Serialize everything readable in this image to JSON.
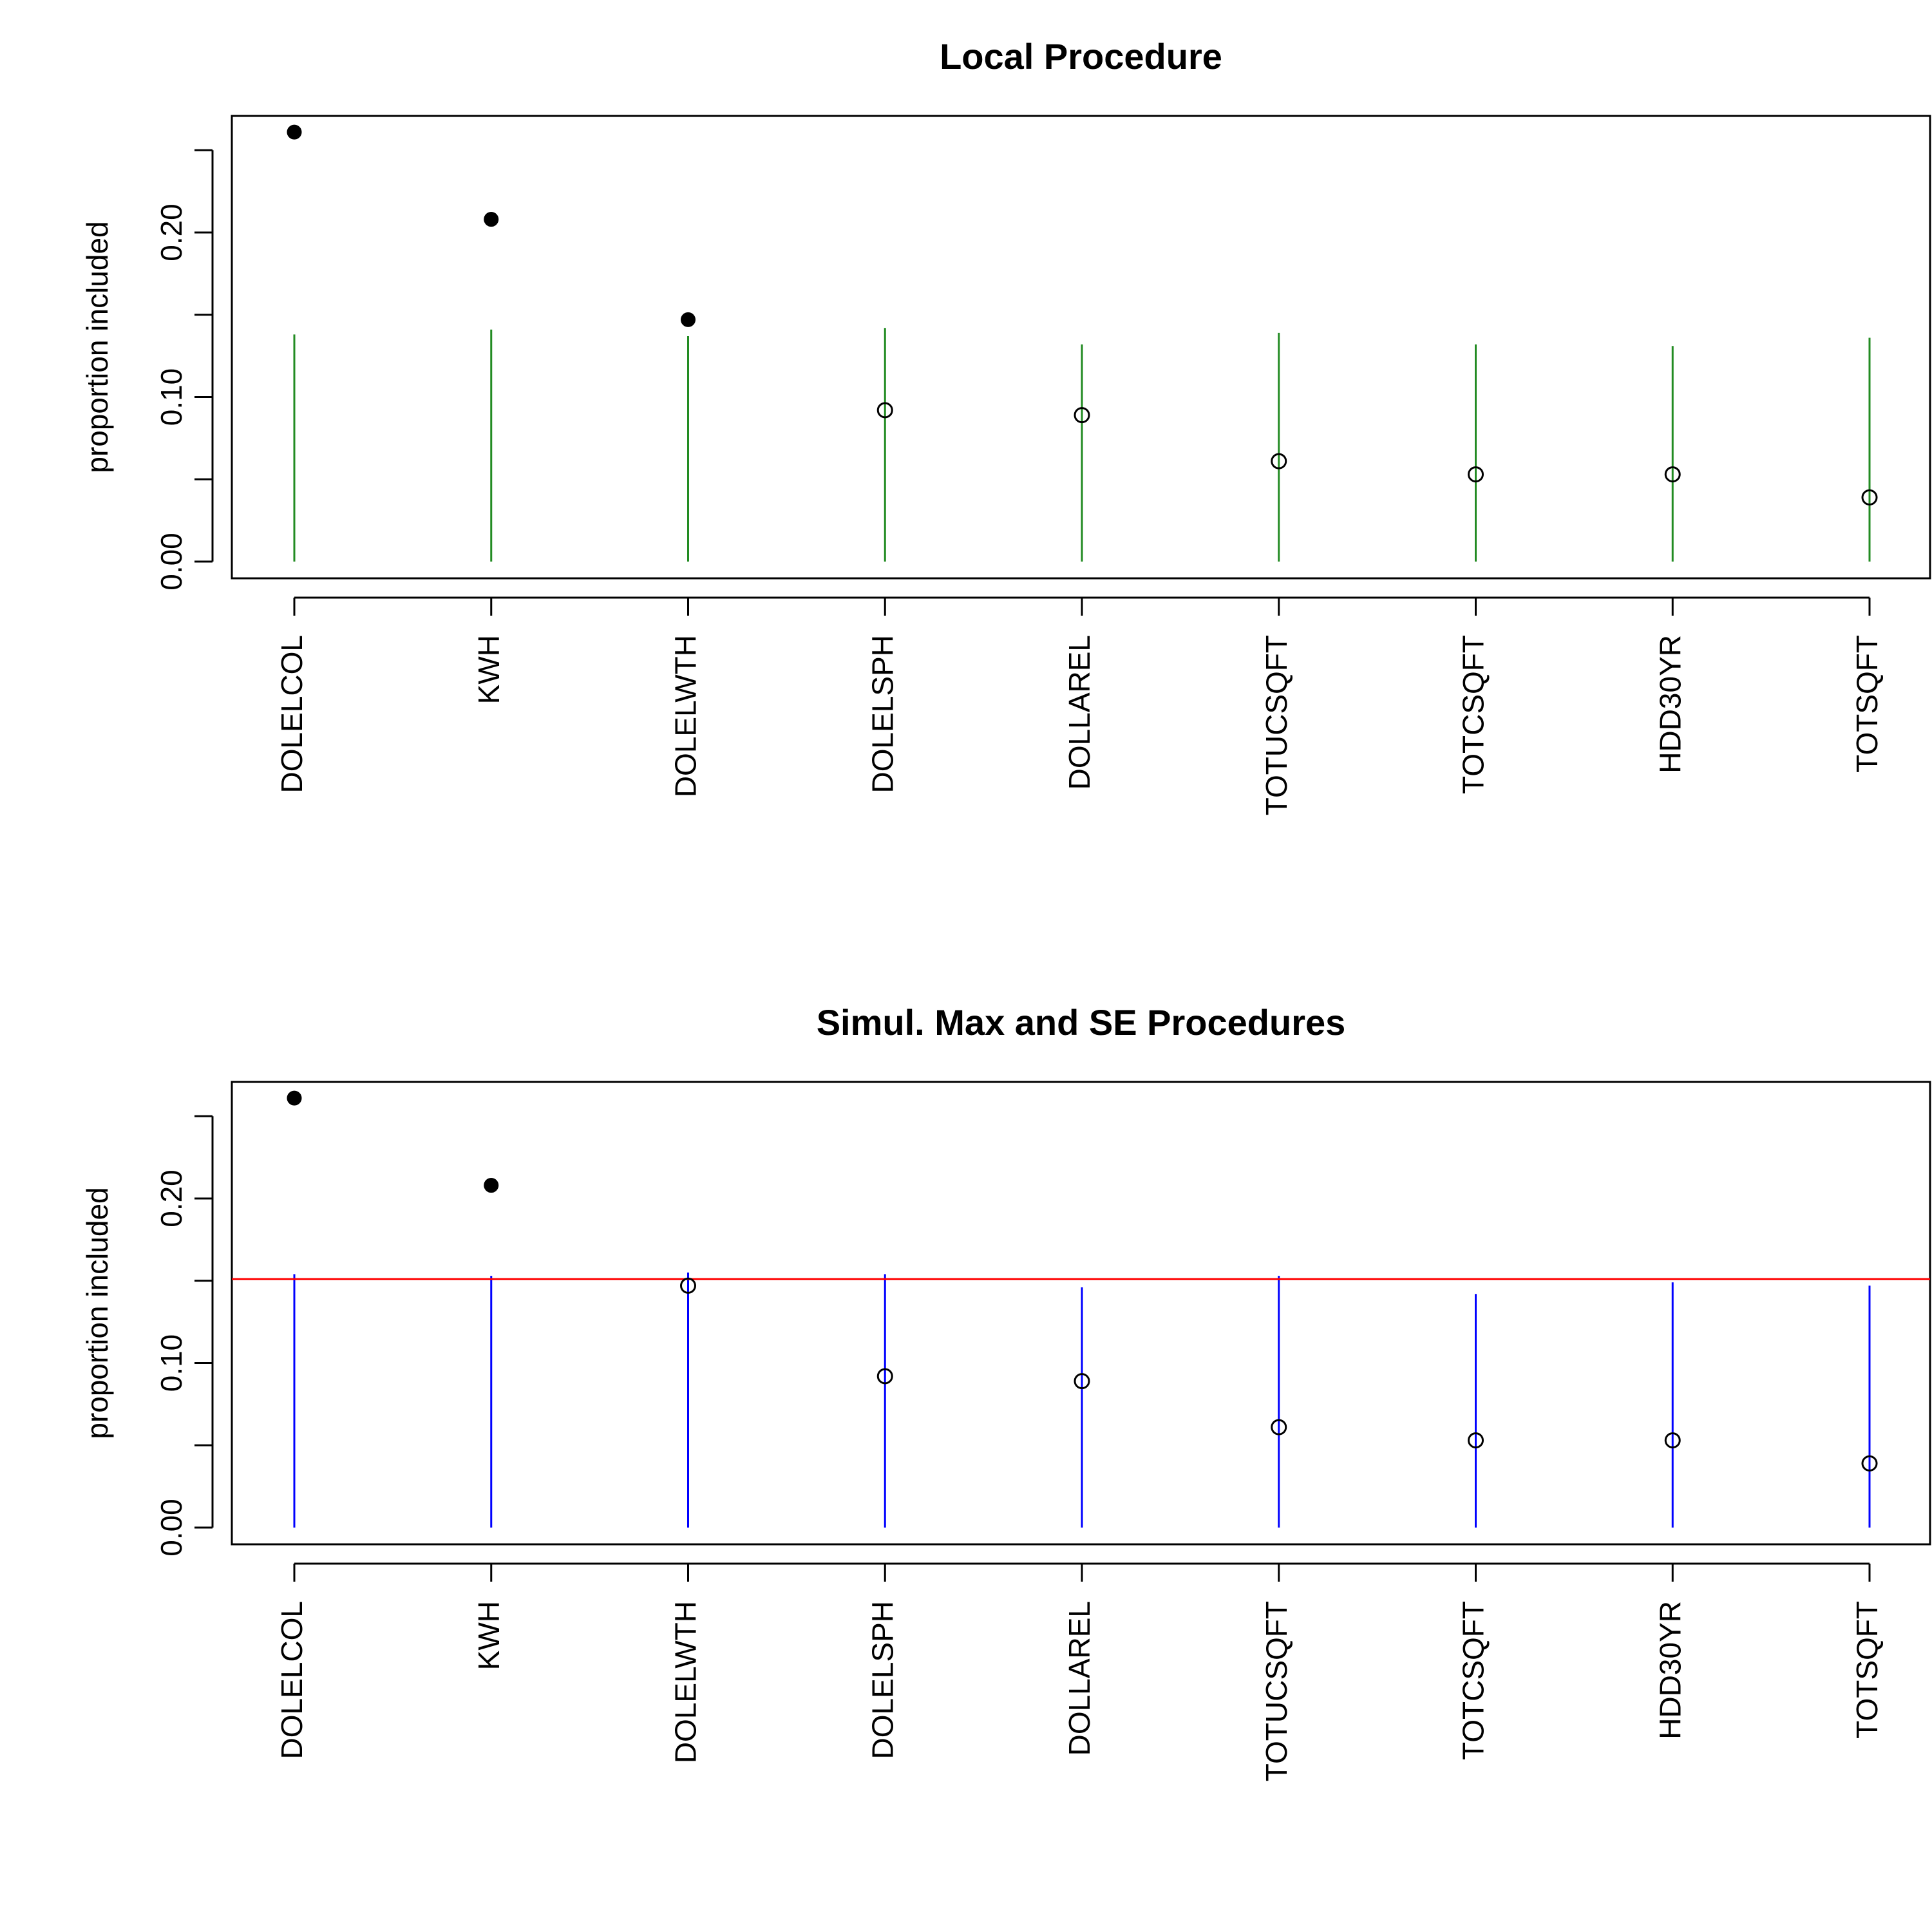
{
  "chart_data": [
    {
      "type": "scatter",
      "title": "Local Procedure",
      "xlabel": "",
      "ylabel": "proportion included",
      "categories": [
        "DOLELCOL",
        "KWH",
        "DOLELWTH",
        "DOLELSPH",
        "DOLLAREL",
        "TOTUCSQFT",
        "TOTCSQFT",
        "HDD30YR",
        "TOTSQFT"
      ],
      "values": [
        0.261,
        0.208,
        0.147,
        0.092,
        0.089,
        0.061,
        0.053,
        0.053,
        0.039
      ],
      "selected": [
        true,
        true,
        true,
        false,
        false,
        false,
        false,
        false,
        false
      ],
      "thresholds": [
        0.138,
        0.141,
        0.137,
        0.142,
        0.132,
        0.139,
        0.132,
        0.131,
        0.136
      ],
      "threshold_color": "#228B22",
      "hline": null,
      "yticks": [
        "0.00",
        "0.10",
        "0.20"
      ],
      "ylim": [
        0,
        0.27
      ],
      "grid": false,
      "legend": "none"
    },
    {
      "type": "scatter",
      "title": "Simul. Max and SE Procedures",
      "xlabel": "",
      "ylabel": "proportion included",
      "categories": [
        "DOLELCOL",
        "KWH",
        "DOLELWTH",
        "DOLELSPH",
        "DOLLAREL",
        "TOTUCSQFT",
        "TOTCSQFT",
        "HDD30YR",
        "TOTSQFT"
      ],
      "values": [
        0.261,
        0.208,
        0.147,
        0.092,
        0.089,
        0.061,
        0.053,
        0.053,
        0.039
      ],
      "selected": [
        true,
        true,
        false,
        false,
        false,
        false,
        false,
        false,
        false
      ],
      "thresholds": [
        0.154,
        0.153,
        0.155,
        0.154,
        0.146,
        0.153,
        0.142,
        0.149,
        0.147
      ],
      "threshold_color": "#0000FF",
      "hline": 0.151,
      "hline_color": "#FF0000",
      "yticks": [
        "0.00",
        "0.10",
        "0.20"
      ],
      "ylim": [
        0,
        0.27
      ],
      "grid": false,
      "legend": "none"
    }
  ]
}
